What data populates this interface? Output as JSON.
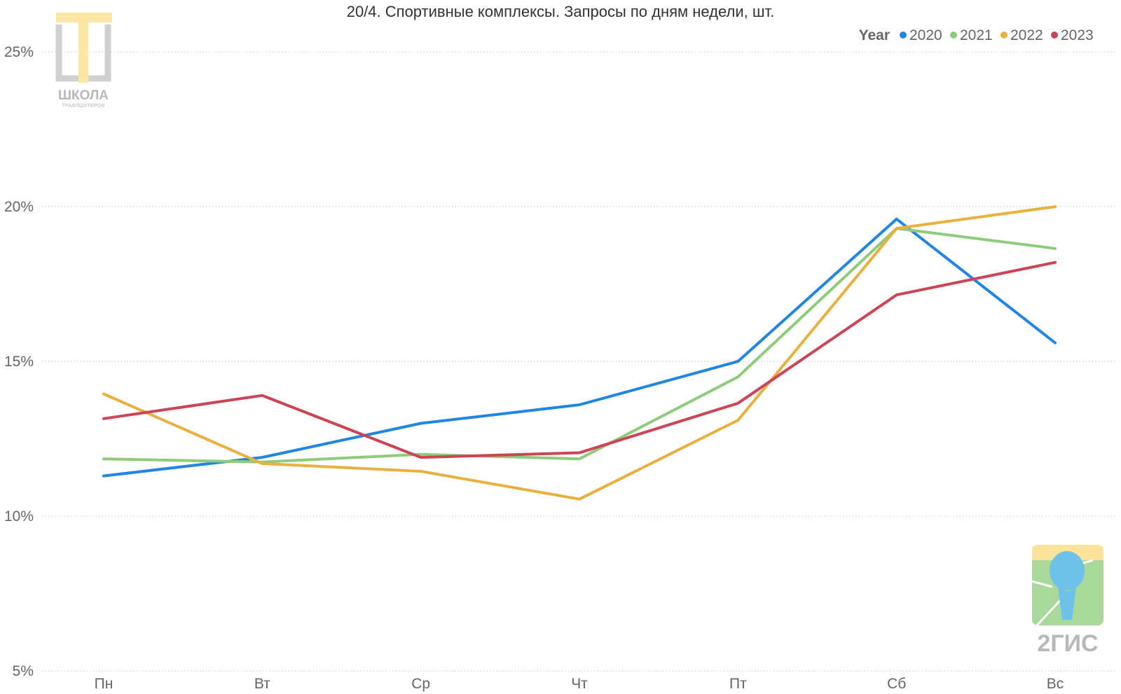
{
  "chart_data": {
    "type": "line",
    "title": "20/4. Спортивные комплексы. Запросы по дням недели, шт.",
    "categories": [
      "Пн",
      "Вт",
      "Ср",
      "Чт",
      "Пт",
      "Сб",
      "Вс"
    ],
    "ylim": [
      5,
      26
    ],
    "yticks": [
      5,
      10,
      15,
      20,
      25
    ],
    "ytick_labels": [
      "5%",
      "10%",
      "15%",
      "20%",
      "25%"
    ],
    "grid": true,
    "legend": {
      "title": "Year",
      "placement": "top-right"
    },
    "series": [
      {
        "name": "2020",
        "color": "#2185e5",
        "values": [
          11.3,
          11.9,
          13.0,
          13.6,
          15.0,
          19.6,
          15.6
        ]
      },
      {
        "name": "2021",
        "color": "#8ecb7a",
        "values": [
          11.85,
          11.75,
          12.0,
          11.85,
          14.5,
          19.3,
          18.65
        ]
      },
      {
        "name": "2022",
        "color": "#e8b03e",
        "values": [
          13.95,
          11.7,
          11.45,
          10.55,
          13.1,
          19.3,
          20.0
        ]
      },
      {
        "name": "2023",
        "color": "#cc4455",
        "values": [
          13.15,
          13.9,
          11.9,
          12.05,
          13.65,
          17.15,
          18.2
        ]
      }
    ]
  },
  "logos": {
    "school": {
      "name": "ШКОЛА",
      "sub": "ТРАФЛШУТЕРОВ"
    },
    "dgis": {
      "name": "2ГИС"
    }
  }
}
